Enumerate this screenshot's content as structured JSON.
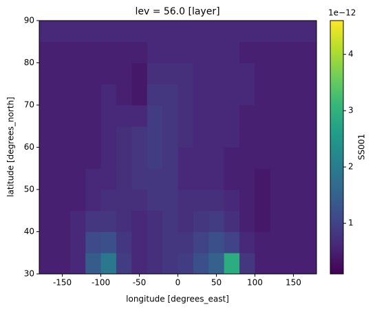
{
  "chart_data": {
    "type": "heatmap",
    "title": "lev = 56.0 [layer]",
    "x_label": "longitude [degrees_east]",
    "y_label": "latitude [degrees_north]",
    "colorbar_label": "SS001",
    "colorbar_offset": "1e−12",
    "colormap": "viridis",
    "x": [
      -170,
      -150,
      -130,
      -110,
      -90,
      -70,
      -50,
      -30,
      -10,
      10,
      30,
      50,
      70,
      90,
      110,
      130,
      150,
      170
    ],
    "y": [
      32.5,
      37.5,
      42.5,
      47.5,
      52.5,
      57.5,
      62.5,
      67.5,
      72.5,
      77.5,
      82.5,
      87.5
    ],
    "values": [
      [
        0.5,
        0.5,
        0.6,
        1.4,
        1.9,
        0.9,
        0.6,
        0.7,
        0.8,
        0.9,
        1.2,
        1.5,
        2.9,
        0.8,
        0.5,
        0.5,
        0.5,
        0.5
      ],
      [
        0.5,
        0.5,
        0.6,
        1.1,
        1.2,
        0.8,
        0.6,
        0.7,
        0.8,
        0.8,
        1.0,
        1.2,
        1.0,
        0.6,
        0.5,
        0.5,
        0.5,
        0.5
      ],
      [
        0.5,
        0.5,
        0.6,
        0.8,
        0.8,
        0.7,
        0.6,
        0.7,
        0.8,
        0.7,
        0.8,
        0.9,
        0.7,
        0.5,
        0.4,
        0.5,
        0.5,
        0.5
      ],
      [
        0.5,
        0.5,
        0.5,
        0.6,
        0.7,
        0.7,
        0.7,
        0.8,
        0.8,
        0.7,
        0.7,
        0.7,
        0.6,
        0.5,
        0.4,
        0.5,
        0.5,
        0.5
      ],
      [
        0.5,
        0.5,
        0.5,
        0.6,
        0.6,
        0.7,
        0.8,
        0.8,
        0.8,
        0.6,
        0.6,
        0.6,
        0.5,
        0.5,
        0.4,
        0.5,
        0.5,
        0.5
      ],
      [
        0.5,
        0.5,
        0.5,
        0.5,
        0.6,
        0.7,
        0.8,
        0.9,
        0.8,
        0.6,
        0.6,
        0.6,
        0.5,
        0.5,
        0.5,
        0.5,
        0.5,
        0.5
      ],
      [
        0.5,
        0.5,
        0.5,
        0.5,
        0.6,
        0.7,
        0.8,
        0.9,
        0.8,
        0.7,
        0.6,
        0.6,
        0.6,
        0.5,
        0.5,
        0.5,
        0.5,
        0.5
      ],
      [
        0.5,
        0.5,
        0.5,
        0.5,
        0.6,
        0.6,
        0.6,
        0.9,
        0.8,
        0.7,
        0.6,
        0.6,
        0.6,
        0.5,
        0.5,
        0.5,
        0.5,
        0.5
      ],
      [
        0.5,
        0.5,
        0.5,
        0.5,
        0.6,
        0.5,
        0.4,
        0.8,
        0.8,
        0.7,
        0.6,
        0.6,
        0.6,
        0.6,
        0.5,
        0.5,
        0.5,
        0.5
      ],
      [
        0.5,
        0.5,
        0.5,
        0.5,
        0.5,
        0.5,
        0.4,
        0.7,
        0.7,
        0.7,
        0.6,
        0.6,
        0.6,
        0.6,
        0.5,
        0.5,
        0.5,
        0.5
      ],
      [
        0.5,
        0.5,
        0.5,
        0.5,
        0.5,
        0.5,
        0.5,
        0.6,
        0.6,
        0.6,
        0.6,
        0.6,
        0.6,
        0.5,
        0.5,
        0.5,
        0.5,
        0.5
      ],
      [
        0.6,
        0.6,
        0.6,
        0.6,
        0.6,
        0.6,
        0.6,
        0.6,
        0.6,
        0.6,
        0.6,
        0.6,
        0.6,
        0.6,
        0.6,
        0.6,
        0.6,
        0.6
      ]
    ],
    "xlim": [
      -180,
      180
    ],
    "xticks": [
      -150,
      -100,
      -50,
      0,
      50,
      100,
      150
    ],
    "ylim": [
      30,
      90
    ],
    "yticks": [
      30,
      40,
      50,
      60,
      70,
      80,
      90
    ],
    "clim": [
      0.1,
      4.6
    ],
    "cticks": [
      1,
      2,
      3,
      4
    ]
  }
}
